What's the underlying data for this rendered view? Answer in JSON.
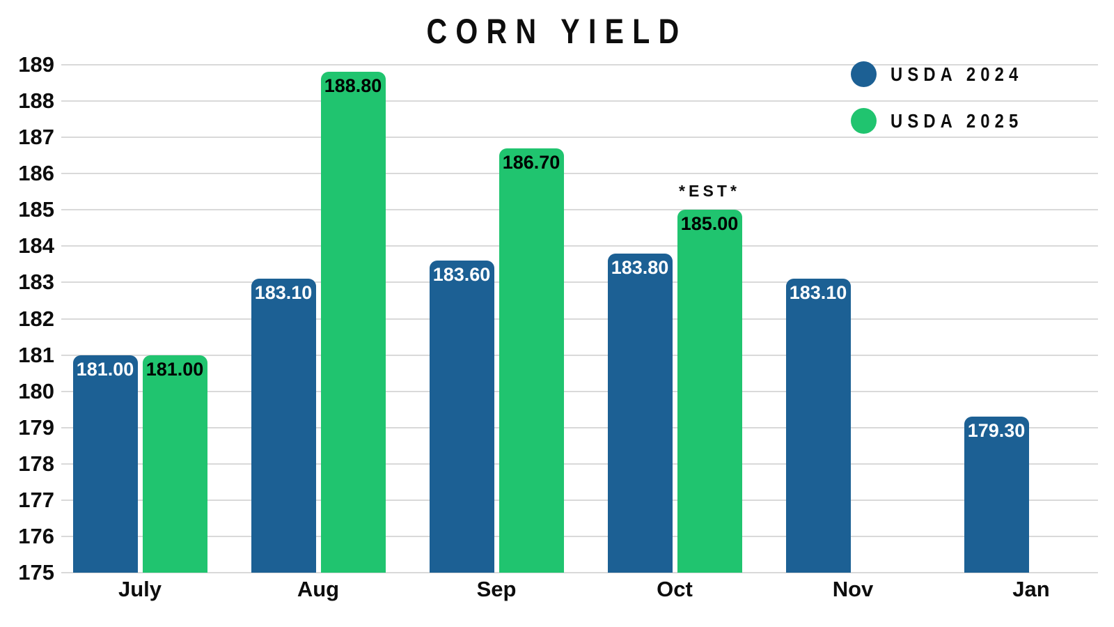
{
  "title": "CORN YIELD",
  "legend": {
    "items": [
      {
        "label": "USDA 2024",
        "color": "#1c6094"
      },
      {
        "label": "USDA 2025",
        "color": "#20c46f"
      }
    ]
  },
  "chart_data": {
    "type": "bar",
    "title": "CORN YIELD",
    "xlabel": "",
    "ylabel": "",
    "categories": [
      "July",
      "Aug",
      "Sep",
      "Oct",
      "Nov",
      "Jan"
    ],
    "series": [
      {
        "name": "USDA 2024",
        "color": "#1c6094",
        "label_color": "#ffffff",
        "values": [
          181.0,
          183.1,
          183.6,
          183.8,
          183.1,
          179.3
        ],
        "labels": [
          "181.00",
          "183.10",
          "183.60",
          "183.80",
          "183.10",
          "179.30"
        ]
      },
      {
        "name": "USDA 2025",
        "color": "#20c46f",
        "label_color": "#000000",
        "values": [
          181.0,
          188.8,
          186.7,
          185.0,
          null,
          null
        ],
        "labels": [
          "181.00",
          "188.80",
          "186.70",
          "185.00",
          null,
          null
        ]
      }
    ],
    "annotation": {
      "text": "*EST*",
      "category_index": 3,
      "series_index": 1
    },
    "ylim": [
      175,
      189
    ],
    "ytick_step": 1,
    "yticks": [
      175,
      176,
      177,
      178,
      179,
      180,
      181,
      182,
      183,
      184,
      185,
      186,
      187,
      188,
      189
    ],
    "grid": true,
    "legend_position": "top-right"
  },
  "colors": {
    "gridline": "#d9d9d9",
    "text": "#0d0d0d",
    "background": "#ffffff"
  }
}
